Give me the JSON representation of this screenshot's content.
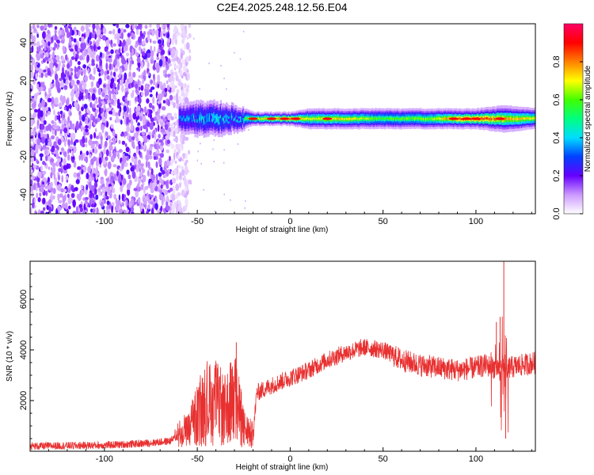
{
  "title": "C2E4.2025.248.12.56.E04",
  "chart_data": [
    {
      "type": "heatmap",
      "xlabel": "Height of straight line (km)",
      "ylabel": "Frequency (Hz)",
      "xlim": [
        -140,
        132
      ],
      "ylim": [
        -50,
        50
      ],
      "xticks": [
        -100,
        -50,
        0,
        50,
        100
      ],
      "yticks": [
        -40,
        -20,
        0,
        20,
        40
      ],
      "colorbar": {
        "label": "Normalized spectral amplitude",
        "range": [
          0,
          1
        ],
        "ticks": [
          0.0,
          0.2,
          0.4,
          0.6,
          0.8
        ]
      },
      "noise_region_x": [
        -140,
        -58
      ],
      "band_center_hz": 0,
      "band_profile": [
        {
          "x": -60,
          "halfwidth": 4,
          "amp": 0.35
        },
        {
          "x": -50,
          "halfwidth": 5,
          "amp": 0.45
        },
        {
          "x": -40,
          "halfwidth": 5,
          "amp": 0.5
        },
        {
          "x": -30,
          "halfwidth": 4,
          "amp": 0.45
        },
        {
          "x": -20,
          "halfwidth": 2,
          "amp": 0.7
        },
        {
          "x": -10,
          "halfwidth": 2,
          "amp": 0.8
        },
        {
          "x": 0,
          "halfwidth": 2,
          "amp": 0.85
        },
        {
          "x": 10,
          "halfwidth": 3,
          "amp": 0.7
        },
        {
          "x": 25,
          "halfwidth": 3,
          "amp": 0.75
        },
        {
          "x": 50,
          "halfwidth": 3,
          "amp": 0.6
        },
        {
          "x": 75,
          "halfwidth": 3,
          "amp": 0.65
        },
        {
          "x": 90,
          "halfwidth": 3,
          "amp": 0.85
        },
        {
          "x": 100,
          "halfwidth": 3,
          "amp": 0.9
        },
        {
          "x": 115,
          "halfwidth": 4,
          "amp": 0.8
        },
        {
          "x": 132,
          "halfwidth": 3,
          "amp": 0.7
        }
      ]
    },
    {
      "type": "line",
      "xlabel": "Height of straight line (km)",
      "ylabel": "SNR (10 * v/v)",
      "xlim": [
        -140,
        132
      ],
      "ylim": [
        0,
        7500
      ],
      "xticks": [
        -100,
        -50,
        0,
        50,
        100
      ],
      "yticks": [
        2000,
        4000,
        6000
      ],
      "color": "#e83030",
      "series_envelope": [
        {
          "x": -140,
          "y": 200
        },
        {
          "x": -120,
          "y": 220
        },
        {
          "x": -100,
          "y": 240
        },
        {
          "x": -80,
          "y": 300
        },
        {
          "x": -65,
          "y": 400
        },
        {
          "x": -55,
          "y": 800
        },
        {
          "x": -50,
          "y": 1400
        },
        {
          "x": -45,
          "y": 1800
        },
        {
          "x": -40,
          "y": 1900
        },
        {
          "x": -35,
          "y": 1600
        },
        {
          "x": -30,
          "y": 2200
        },
        {
          "x": -25,
          "y": 900
        },
        {
          "x": -20,
          "y": 600
        },
        {
          "x": -18,
          "y": 2300
        },
        {
          "x": -10,
          "y": 2600
        },
        {
          "x": 0,
          "y": 2900
        },
        {
          "x": 10,
          "y": 3200
        },
        {
          "x": 20,
          "y": 3600
        },
        {
          "x": 30,
          "y": 3900
        },
        {
          "x": 40,
          "y": 4100
        },
        {
          "x": 50,
          "y": 4000
        },
        {
          "x": 55,
          "y": 3800
        },
        {
          "x": 60,
          "y": 3600
        },
        {
          "x": 70,
          "y": 3400
        },
        {
          "x": 80,
          "y": 3300
        },
        {
          "x": 90,
          "y": 3200
        },
        {
          "x": 100,
          "y": 3300
        },
        {
          "x": 105,
          "y": 3400
        },
        {
          "x": 110,
          "y": 3300
        },
        {
          "x": 118,
          "y": 3300
        },
        {
          "x": 125,
          "y": 3400
        },
        {
          "x": 132,
          "y": 3500
        }
      ],
      "spikes": [
        {
          "x": -29,
          "y": 4300
        },
        {
          "x": 111,
          "y": 5100
        },
        {
          "x": 113,
          "y": 5300
        },
        {
          "x": 115,
          "y": 7500
        },
        {
          "x": 116,
          "y": 500
        }
      ]
    }
  ]
}
